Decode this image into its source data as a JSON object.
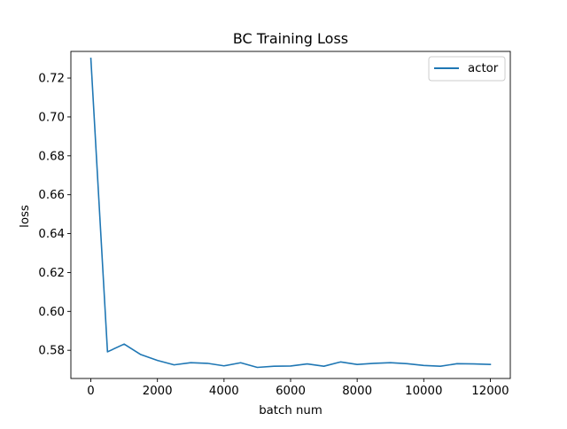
{
  "chart_data": {
    "type": "line",
    "title": "BC Training Loss",
    "xlabel": "batch num",
    "ylabel": "loss",
    "xlim": [
      -600,
      12600
    ],
    "ylim": [
      0.5655,
      0.7337
    ],
    "xticks": [
      0,
      2000,
      4000,
      6000,
      8000,
      10000,
      12000
    ],
    "yticks": [
      0.58,
      0.6,
      0.62,
      0.64,
      0.66,
      0.68,
      0.7,
      0.72
    ],
    "ytick_decimals": 2,
    "grid": false,
    "legend": "top-right",
    "series": [
      {
        "name": "actor",
        "color": "#1f77b4",
        "x": [
          0,
          500,
          1000,
          1500,
          2000,
          2500,
          3000,
          3500,
          4000,
          4500,
          5000,
          5500,
          6000,
          6500,
          7000,
          7500,
          8000,
          8500,
          9000,
          9500,
          10000,
          10500,
          11000,
          11500,
          12000
        ],
        "y": [
          0.7301,
          0.5792,
          0.5832,
          0.5778,
          0.5748,
          0.5725,
          0.5736,
          0.5733,
          0.572,
          0.5736,
          0.5712,
          0.5718,
          0.5719,
          0.573,
          0.5718,
          0.574,
          0.5727,
          0.5733,
          0.5736,
          0.5731,
          0.5722,
          0.5718,
          0.5731,
          0.573,
          0.5727
        ]
      }
    ]
  }
}
